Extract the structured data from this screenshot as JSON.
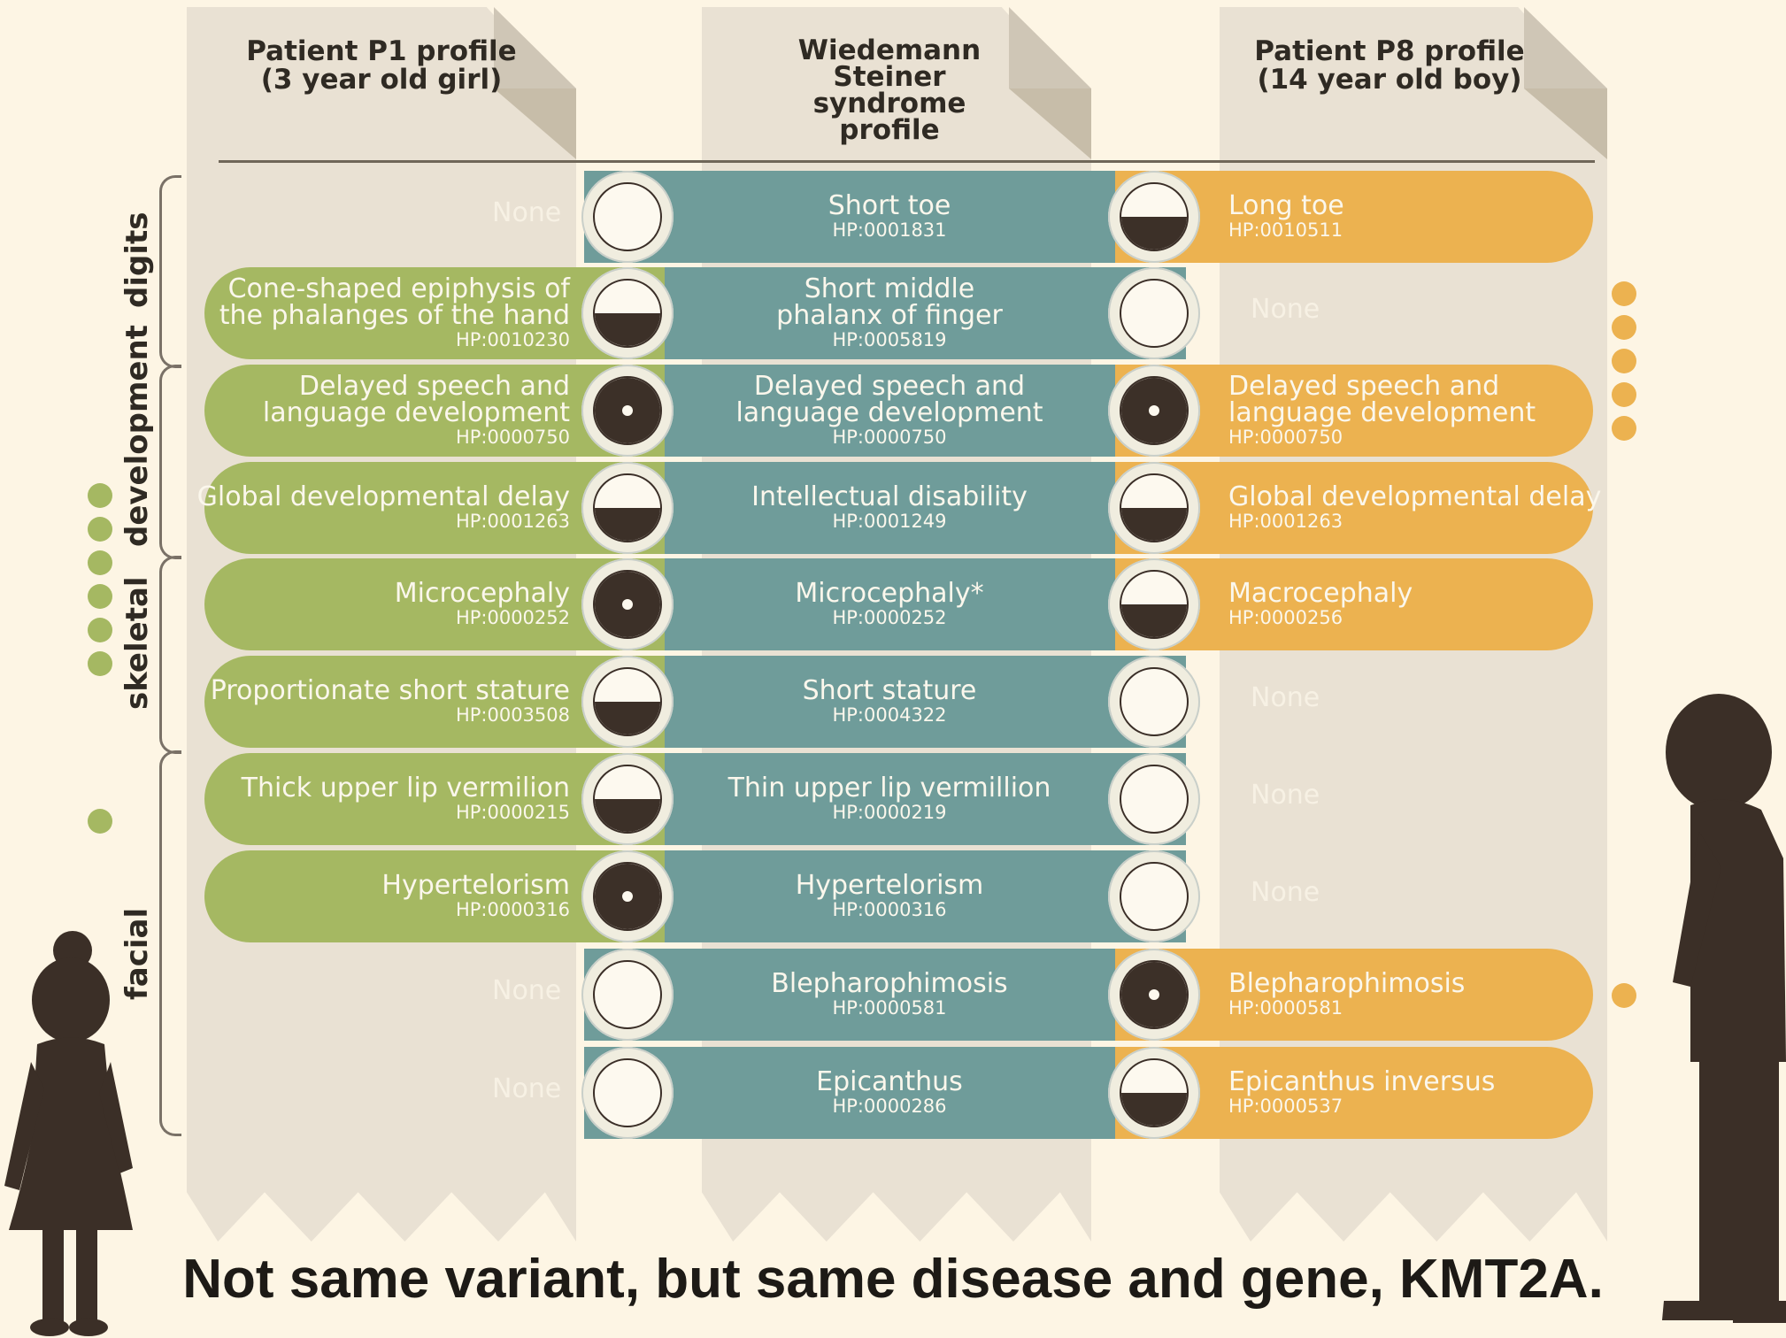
{
  "headers": {
    "left": "Patient P1 profile\n(3 year old girl)",
    "center": "Wiedemann\nSteiner\nsyndrome\nprofile",
    "right": "Patient P8 profile\n(14 year old boy)"
  },
  "categories": {
    "digits": "digits",
    "development": "development",
    "skeletal": "skeletal",
    "facial": "facial"
  },
  "none_label": "None",
  "rows": [
    {
      "left": null,
      "left_hp": null,
      "center": "Short toe",
      "center_hp": "HP:0001831",
      "right": "Long toe",
      "right_hp": "HP:0010511",
      "left_marker": "empty",
      "right_marker": "half"
    },
    {
      "left": "Cone-shaped epiphysis of\nthe phalanges of the hand",
      "left_hp": "HP:0010230",
      "center": "Short middle\nphalanx of finger",
      "center_hp": "HP:0005819",
      "right": null,
      "right_hp": null,
      "left_marker": "half",
      "right_marker": "empty"
    },
    {
      "left": "Delayed speech and\nlanguage development",
      "left_hp": "HP:0000750",
      "center": "Delayed speech and\nlanguage development",
      "center_hp": "HP:0000750",
      "right": "Delayed speech and\nlanguage development",
      "right_hp": "HP:0000750",
      "left_marker": "full",
      "right_marker": "full"
    },
    {
      "left": "Global developmental delay",
      "left_hp": "HP:0001263",
      "center": "Intellectual disability",
      "center_hp": "HP:0001249",
      "right": "Global developmental delay",
      "right_hp": "HP:0001263",
      "left_marker": "half",
      "right_marker": "half"
    },
    {
      "left": "Microcephaly",
      "left_hp": "HP:0000252",
      "center": "Microcephaly*",
      "center_hp": "HP:0000252",
      "right": "Macrocephaly",
      "right_hp": "HP:0000256",
      "left_marker": "full",
      "right_marker": "half"
    },
    {
      "left": "Proportionate short stature",
      "left_hp": "HP:0003508",
      "center": "Short stature",
      "center_hp": "HP:0004322",
      "right": null,
      "right_hp": null,
      "left_marker": "half",
      "right_marker": "empty"
    },
    {
      "left": "Thick upper lip vermilion",
      "left_hp": "HP:0000215",
      "center": "Thin upper lip vermillion",
      "center_hp": "HP:0000219",
      "right": null,
      "right_hp": null,
      "left_marker": "half",
      "right_marker": "empty"
    },
    {
      "left": "Hypertelorism",
      "left_hp": "HP:0000316",
      "center": "Hypertelorism",
      "center_hp": "HP:0000316",
      "right": null,
      "right_hp": null,
      "left_marker": "full",
      "right_marker": "empty"
    },
    {
      "left": null,
      "left_hp": null,
      "center": "Blepharophimosis",
      "center_hp": "HP:0000581",
      "right": "Blepharophimosis",
      "right_hp": "HP:0000581",
      "left_marker": "empty",
      "right_marker": "full"
    },
    {
      "left": null,
      "left_hp": null,
      "center": "Epicanthus",
      "center_hp": "HP:0000286",
      "right": "Epicanthus inversus",
      "right_hp": "HP:0000537",
      "left_marker": "empty",
      "right_marker": "half"
    }
  ],
  "footer": "Not same variant, but same disease and gene, KMT2A.",
  "colors": {
    "patient_p1": "#a5b862",
    "syndrome": "#6f9c9a",
    "patient_p8": "#ecb250",
    "background": "#fdf5e4"
  }
}
